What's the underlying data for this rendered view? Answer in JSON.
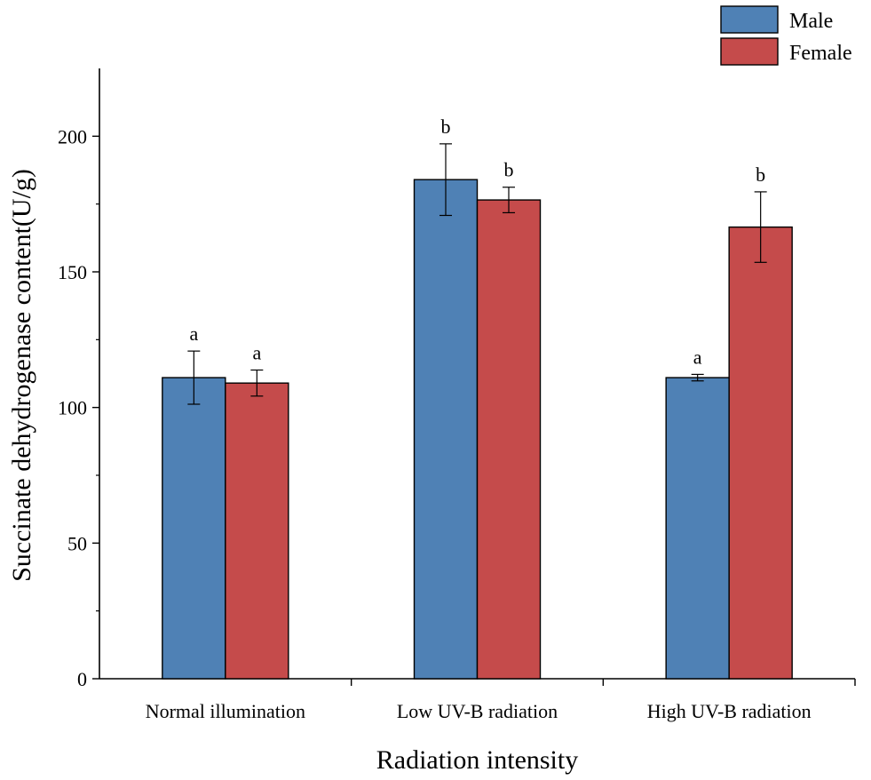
{
  "chart_data": {
    "type": "bar",
    "title": "",
    "xlabel": "Radiation intensity",
    "ylabel": "Succinate dehydrogenase content(U/g)",
    "categories": [
      "Normal illumination",
      "Low UV-B radiation",
      "High UV-B radiation"
    ],
    "ylim": [
      0,
      225
    ],
    "yticks": [
      0,
      50,
      100,
      150,
      200
    ],
    "series": [
      {
        "name": "Male",
        "color": "#4f81b5",
        "values": [
          111,
          184,
          111
        ],
        "errors": [
          9.8,
          13.2,
          1.2
        ],
        "significance": [
          "a",
          "b",
          "a"
        ]
      },
      {
        "name": "Female",
        "color": "#c54b4b",
        "values": [
          109,
          176.5,
          166.5
        ],
        "errors": [
          4.8,
          4.7,
          13
        ],
        "significance": [
          "a",
          "b",
          "b"
        ]
      }
    ],
    "legend_position": "top-right"
  }
}
